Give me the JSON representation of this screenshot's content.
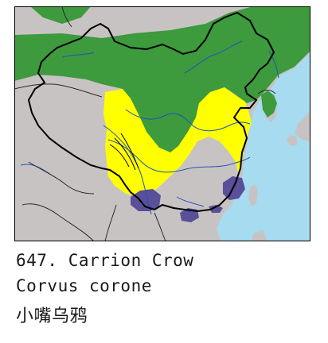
{
  "caption": {
    "number_name": "647. Carrion Crow",
    "scientific_name": "Corvus corone",
    "chinese_name": "小嘴乌鸦"
  },
  "colors": {
    "sea": "#a6dbf0",
    "land": "#c8c3c3",
    "breeding_range": "#3d9a3d",
    "winter_range": "#ffff00",
    "resident_range": "#5a4f99",
    "borders": "#000000",
    "rivers": "#1f55b8"
  },
  "legend_semantics": [
    "green-range",
    "yellow-range",
    "purple-range"
  ]
}
